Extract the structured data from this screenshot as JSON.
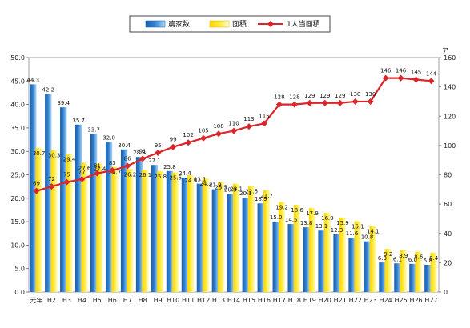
{
  "chart_data": {
    "type": "bar",
    "categories": [
      "元年",
      "H2",
      "H3",
      "H4",
      "H5",
      "H6",
      "H7",
      "H8",
      "H9",
      "H10",
      "H11",
      "H12",
      "H13",
      "H14",
      "H15",
      "H16",
      "H17",
      "H18",
      "H19",
      "H20",
      "H21",
      "H22",
      "H23",
      "H24",
      "H25",
      "H26",
      "H27"
    ],
    "series": [
      {
        "name": "農家数",
        "type": "bar",
        "axis": "left",
        "color": "#2a73c4",
        "values": [
          44.3,
          42.2,
          39.4,
          35.7,
          33.7,
          32.0,
          30.4,
          28.8,
          27.1,
          25.8,
          24.4,
          23.1,
          21.9,
          20.9,
          20.1,
          18.9,
          15.0,
          14.5,
          13.8,
          13.1,
          12.3,
          11.6,
          10.8,
          6.3,
          6.1,
          6.0,
          5.8
        ]
      },
      {
        "name": "面積",
        "type": "bar",
        "axis": "left",
        "color": "#ffe21a",
        "values": [
          30.7,
          30.3,
          29.4,
          27.6,
          27.4,
          26.7,
          26.2,
          26.1,
          25.8,
          25.5,
          24.9,
          24.2,
          23.5,
          23.1,
          22.6,
          21.7,
          19.2,
          18.6,
          17.9,
          16.9,
          15.9,
          15.1,
          14.1,
          9.2,
          8.9,
          8.6,
          8.4
        ]
      },
      {
        "name": "1人当面積",
        "type": "line",
        "axis": "right",
        "color": "#d9262b",
        "values": [
          69,
          72,
          75,
          77,
          81,
          83,
          86,
          91,
          95,
          99,
          102,
          105,
          108,
          110,
          113,
          115,
          128,
          128,
          129,
          129,
          129,
          130,
          130,
          146,
          146,
          145,
          144
        ]
      }
    ],
    "ylim": [
      0,
      50
    ],
    "y_ticks": [
      "0.0",
      "5.0",
      "10.0",
      "15.0",
      "20.0",
      "25.0",
      "30.0",
      "35.0",
      "40.0",
      "45.0",
      "50.0"
    ],
    "y2lim": [
      0,
      160
    ],
    "y2_ticks": [
      "0",
      "20",
      "40",
      "60",
      "80",
      "100",
      "120",
      "140",
      "160"
    ],
    "y2_unit": "ア",
    "legend_position": "top",
    "grid": false
  }
}
